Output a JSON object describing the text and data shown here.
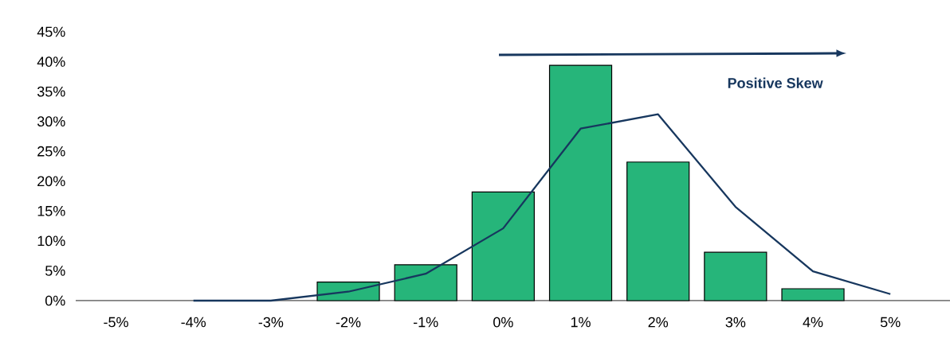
{
  "chart_data": {
    "type": "bar",
    "categories": [
      "-5%",
      "-4%",
      "-3%",
      "-2%",
      "-1%",
      "0%",
      "1%",
      "2%",
      "3%",
      "4%",
      "5%"
    ],
    "series": [
      {
        "color": "#26b57a",
        "values": [
          null,
          null,
          null,
          3.1,
          6.0,
          18.2,
          39.4,
          23.2,
          8.1,
          2.0,
          null
        ]
      },
      {
        "type": "line",
        "color": "#17375e",
        "values": [
          null,
          0,
          0,
          1.5,
          4.5,
          12.1,
          28.8,
          31.2,
          15.7,
          4.9,
          1.1
        ]
      }
    ],
    "ylim": [
      0,
      45
    ],
    "yticks": [
      {
        "value": 0,
        "label": "0%"
      },
      {
        "value": 5,
        "label": "5%"
      },
      {
        "value": 10,
        "label": "10%"
      },
      {
        "value": 15,
        "label": "15%"
      },
      {
        "value": 20,
        "label": "20%"
      },
      {
        "value": 25,
        "label": "25%"
      },
      {
        "value": 30,
        "label": "30%"
      },
      {
        "value": 35,
        "label": "35%"
      },
      {
        "value": 40,
        "label": "40%"
      },
      {
        "value": 45,
        "label": "45%"
      }
    ],
    "annotations": [
      "Positive Skew"
    ],
    "marker": "none",
    "line_style": "solid"
  }
}
